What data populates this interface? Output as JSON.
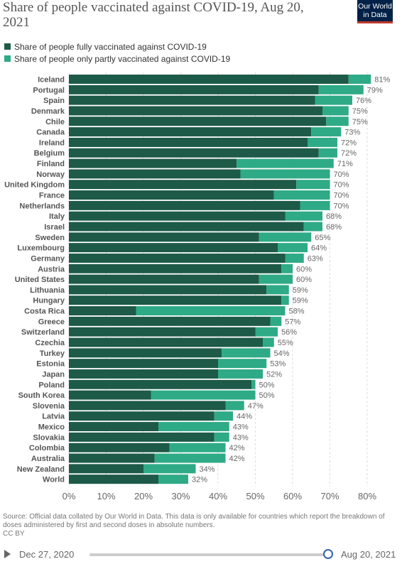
{
  "header": {
    "title": "Share of people vaccinated against COVID-19, Aug 20, 2021",
    "logo_line1": "Our World",
    "logo_line2": "in Data"
  },
  "legend": [
    {
      "label": "Share of people fully vaccinated against COVID-19",
      "color": "#1d5a47"
    },
    {
      "label": "Share of people only partly vaccinated against COVID-19",
      "color": "#2eaa86"
    }
  ],
  "chart_data": {
    "type": "bar",
    "orientation": "horizontal",
    "stacked": true,
    "categories": [
      "Iceland",
      "Portugal",
      "Spain",
      "Denmark",
      "Chile",
      "Canada",
      "Ireland",
      "Belgium",
      "Finland",
      "Norway",
      "United Kingdom",
      "France",
      "Netherlands",
      "Italy",
      "Israel",
      "Sweden",
      "Luxembourg",
      "Germany",
      "Austria",
      "United States",
      "Lithuania",
      "Hungary",
      "Costa Rica",
      "Greece",
      "Switzerland",
      "Czechia",
      "Turkey",
      "Estonia",
      "Japan",
      "Poland",
      "South Korea",
      "Slovenia",
      "Latvia",
      "Mexico",
      "Slovakia",
      "Colombia",
      "Australia",
      "New Zealand",
      "World"
    ],
    "series": [
      {
        "name": "Share of people fully vaccinated against COVID-19",
        "color": "#1d5a47",
        "values": [
          75,
          67,
          66,
          68,
          69,
          65,
          64,
          67,
          45,
          46,
          61,
          55,
          62,
          58,
          63,
          51,
          56,
          58,
          57,
          51,
          53,
          57,
          18,
          54,
          50,
          52,
          41,
          40,
          40,
          49,
          22,
          42,
          39,
          24,
          39,
          27,
          23,
          20,
          24
        ]
      },
      {
        "name": "Share of people only partly vaccinated against COVID-19",
        "color": "#2eaa86",
        "values": [
          6,
          12,
          10,
          7,
          6,
          8,
          8,
          5,
          26,
          24,
          9,
          15,
          8,
          10,
          5,
          14,
          8,
          5,
          3,
          9,
          6,
          2,
          40,
          3,
          6,
          3,
          13,
          13,
          12,
          1,
          28,
          5,
          5,
          19,
          4,
          15,
          19,
          14,
          8
        ]
      }
    ],
    "totals_labels": [
      "81%",
      "79%",
      "76%",
      "75%",
      "75%",
      "73%",
      "72%",
      "72%",
      "71%",
      "70%",
      "70%",
      "70%",
      "70%",
      "68%",
      "68%",
      "65%",
      "64%",
      "63%",
      "60%",
      "60%",
      "59%",
      "59%",
      "58%",
      "57%",
      "56%",
      "55%",
      "54%",
      "53%",
      "52%",
      "50%",
      "50%",
      "47%",
      "44%",
      "43%",
      "43%",
      "42%",
      "42%",
      "34%",
      "32%"
    ],
    "x_ticks": [
      0,
      10,
      20,
      30,
      40,
      50,
      60,
      70,
      80
    ],
    "x_tick_labels": [
      "0%",
      "10%",
      "20%",
      "30%",
      "40%",
      "50%",
      "60%",
      "70%",
      "80%"
    ],
    "xlim": [
      0,
      80
    ],
    "grid": true
  },
  "footer": {
    "source": "Source: Official data collated by Our World in Data. This data is only available for countries which report the breakdown of doses administered by first and second doses in absolute numbers.",
    "license": "CC BY"
  },
  "timeline": {
    "start": "Dec 27, 2020",
    "end": "Aug 20, 2021"
  }
}
